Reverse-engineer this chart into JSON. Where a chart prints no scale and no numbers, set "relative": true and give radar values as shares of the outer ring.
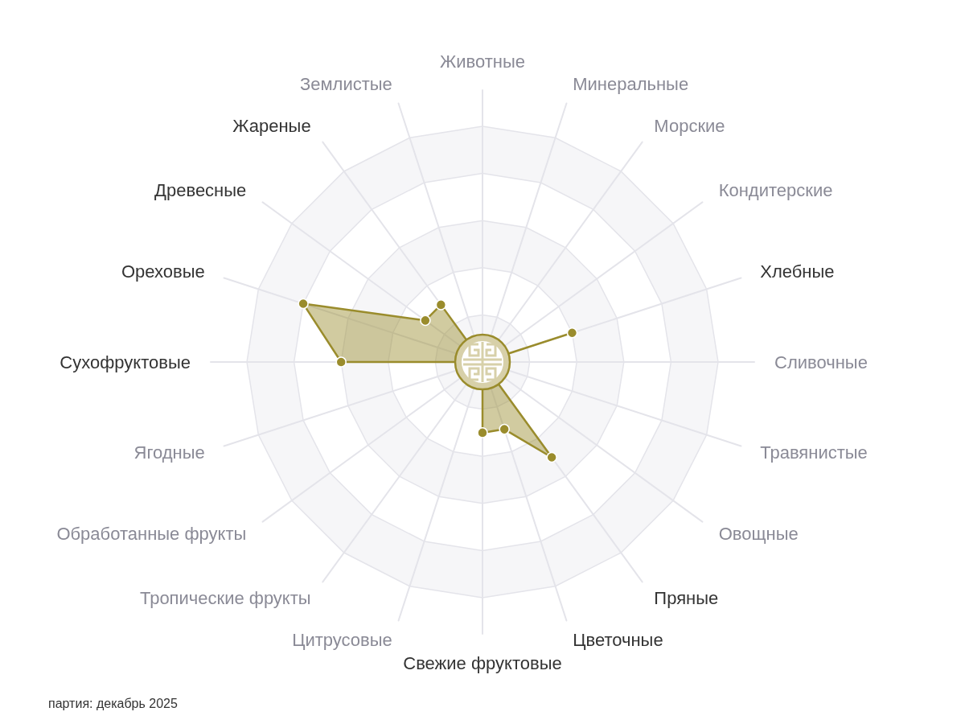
{
  "chart_data": {
    "type": "radar",
    "categories": [
      "Животные",
      "Минеральные",
      "Морские",
      "Кондитерские",
      "Хлебные",
      "Сливочные",
      "Травянистые",
      "Овощные",
      "Пряные",
      "Цветочные",
      "Свежие фруктовые",
      "Цитрусовые",
      "Тропические фрукты",
      "Обработанные фрукты",
      "Ягодные",
      "Сухофруктовые",
      "Ореховые",
      "Древесные",
      "Жареные",
      "Землистые"
    ],
    "series": [
      {
        "color": "#9a8c2c",
        "values": [
          0,
          0,
          0,
          0,
          0.4,
          0,
          0,
          0,
          0.5,
          0.3,
          0.3,
          0,
          0,
          0,
          0,
          0.6,
          0.8,
          0.3,
          0.3,
          0
        ]
      }
    ],
    "relative": true,
    "grid": true,
    "marker": "circle",
    "annotations": [
      "партия: декабрь 2025"
    ]
  }
}
